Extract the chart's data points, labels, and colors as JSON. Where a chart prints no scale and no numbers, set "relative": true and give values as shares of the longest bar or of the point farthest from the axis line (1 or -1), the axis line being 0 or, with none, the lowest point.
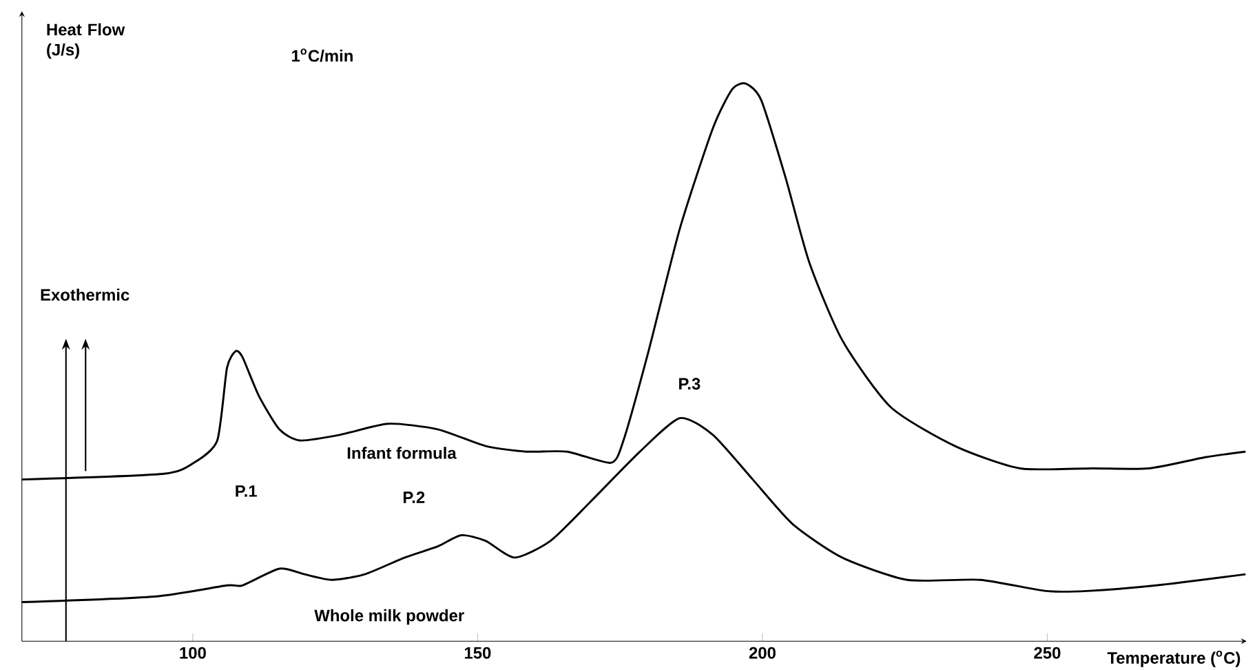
{
  "chart_data": {
    "type": "line",
    "relative": true,
    "xlabel": "Temperature ($^{o}$C)",
    "ylabel": "Heat Flow (J/s)",
    "xlim": [
      70,
      285
    ],
    "xticks": [
      100,
      150,
      200,
      250
    ],
    "annotations": [
      "1$^{o}$C/min",
      "Exothermic",
      "P.1",
      "P.2",
      "P.3"
    ],
    "series": [
      {
        "name": "Infant formula",
        "color": "#000000",
        "x": [
          70.0,
          94.7,
          100.2,
          104.3,
          106.0,
          107.5,
          108.7,
          111.6,
          115.2,
          118.8,
          125.8,
          134.3,
          143.0,
          151.4,
          158.5,
          165.7,
          173.4,
          175.6,
          180.0,
          185.5,
          191.3,
          194.7,
          197.1,
          199.8,
          204.1,
          208.2,
          214.0,
          222.5,
          233.8,
          245.2,
          258.0,
          267.9,
          277.8,
          284.8
        ],
        "values": [
          0.29,
          0.3,
          0.32,
          0.36,
          0.49,
          0.52,
          0.51,
          0.44,
          0.38,
          0.36,
          0.37,
          0.39,
          0.38,
          0.35,
          0.34,
          0.34,
          0.32,
          0.36,
          0.52,
          0.74,
          0.92,
          0.99,
          1.0,
          0.97,
          0.83,
          0.68,
          0.54,
          0.42,
          0.35,
          0.31,
          0.31,
          0.31,
          0.33,
          0.34
        ]
      },
      {
        "name": "Whole milk powder",
        "color": "#000000",
        "x": [
          70.0,
          93.2,
          106.0,
          108.7,
          115.2,
          119.6,
          124.4,
          130.2,
          137.2,
          143.0,
          147.1,
          151.4,
          156.5,
          162.8,
          169.8,
          178.5,
          185.5,
          191.3,
          198.3,
          205.3,
          214.0,
          225.4,
          238.2,
          249.8,
          257.0,
          269.1,
          284.8
        ],
        "values": [
          0.07,
          0.08,
          0.1,
          0.1,
          0.13,
          0.12,
          0.11,
          0.12,
          0.15,
          0.17,
          0.19,
          0.18,
          0.15,
          0.18,
          0.25,
          0.34,
          0.4,
          0.37,
          0.29,
          0.21,
          0.15,
          0.11,
          0.11,
          0.09,
          0.09,
          0.1,
          0.12
        ]
      }
    ]
  }
}
